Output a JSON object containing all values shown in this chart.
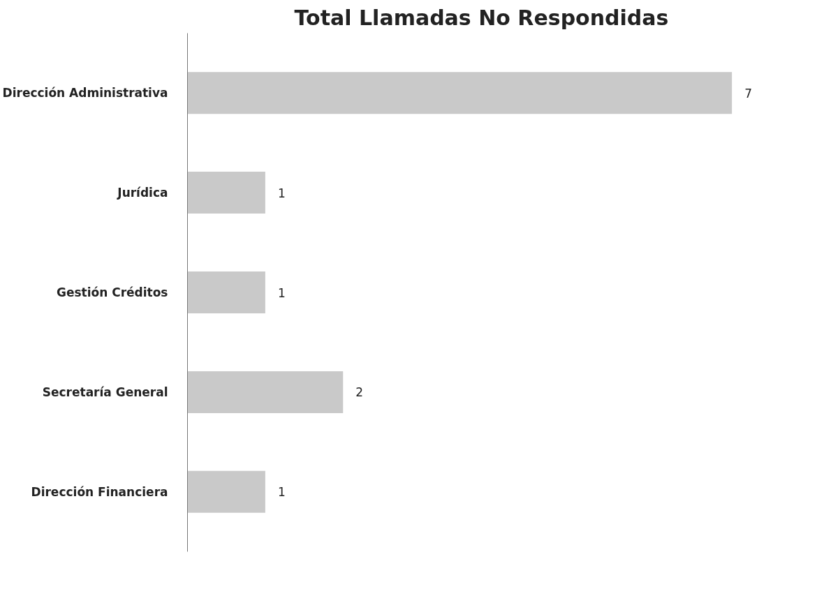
{
  "chart_data": {
    "type": "bar",
    "orientation": "horizontal",
    "title": "Total Llamadas No Respondidas",
    "categories": [
      "Dirección Administrativa",
      "Jurídica",
      "Gestión Créditos",
      "Secretaría General",
      "Dirección Financiera"
    ],
    "values": [
      7,
      1,
      1,
      2,
      1
    ],
    "color": "#c9c9c9",
    "data_labels": true,
    "grid": false,
    "tick_labels": "y"
  }
}
